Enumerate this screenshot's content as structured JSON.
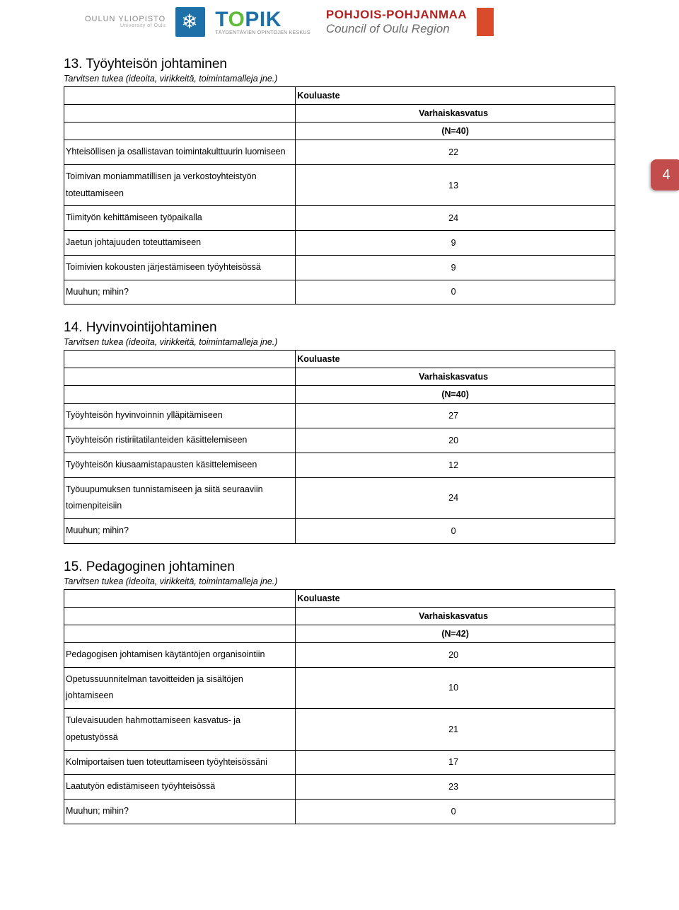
{
  "logos": {
    "oulun_top": "OULUN YLIOPISTO",
    "oulun_bot": "University of Oulu",
    "topik": "TOPIK",
    "topik_sub": "TÄYDENTÄVIEN OPINTOJEN KESKUS",
    "pp_line1": "POHJOIS-POHJANMAA",
    "pp_line2": "Council of Oulu Region"
  },
  "page_number": "4",
  "sections": [
    {
      "title": "13. Työyhteisön johtaminen",
      "subtitle": "Tarvitsen tukea (ideoita, virikkeitä, toimintamalleja jne.)",
      "kouluaste": "Kouluaste",
      "varhais": "Varhaiskasvatus",
      "n": "(N=40)",
      "rows": [
        {
          "label": "Yhteisöllisen ja osallistavan toimintakulttuurin luomiseen",
          "v": "22"
        },
        {
          "label": "Toimivan moniammatillisen ja verkostoyhteistyön toteuttamiseen",
          "v": "13"
        },
        {
          "label": "Tiimityön kehittämiseen työpaikalla",
          "v": "24"
        },
        {
          "label": "Jaetun johtajuuden toteuttamiseen",
          "v": "9"
        },
        {
          "label": "Toimivien kokousten järjestämiseen työyhteisössä",
          "v": "9"
        },
        {
          "label": "Muuhun; mihin?",
          "v": "0"
        }
      ]
    },
    {
      "title": "14. Hyvinvointijohtaminen",
      "subtitle": "Tarvitsen tukea (ideoita, virikkeitä, toimintamalleja jne.)",
      "kouluaste": "Kouluaste",
      "varhais": "Varhaiskasvatus",
      "n": "(N=40)",
      "rows": [
        {
          "label": "Työyhteisön hyvinvoinnin ylläpitämiseen",
          "v": "27"
        },
        {
          "label": "Työyhteisön ristiriitatilanteiden käsittelemiseen",
          "v": "20"
        },
        {
          "label": "Työyhteisön kiusaamistapausten käsittelemiseen",
          "v": "12"
        },
        {
          "label": "Työuupumuksen tunnistamiseen ja siitä seuraaviin toimenpiteisiin",
          "v": "24"
        },
        {
          "label": "Muuhun; mihin?",
          "v": "0"
        }
      ]
    },
    {
      "title": "15. Pedagoginen johtaminen",
      "subtitle": "Tarvitsen tukea (ideoita, virikkeitä, toimintamalleja jne.)",
      "kouluaste": "Kouluaste",
      "varhais": "Varhaiskasvatus",
      "n": "(N=42)",
      "rows": [
        {
          "label": "Pedagogisen johtamisen  käytäntöjen organisointiin",
          "v": "20"
        },
        {
          "label": "Opetussuunnitelman tavoitteiden ja sisältöjen johtamiseen",
          "v": "10"
        },
        {
          "label": "Tulevaisuuden hahmottamiseen kasvatus- ja opetustyössä",
          "v": "21"
        },
        {
          "label": "Kolmiportaisen tuen toteuttamiseen työyhteisössäni",
          "v": "17"
        },
        {
          "label": "Laatutyön edistämiseen työyhteisössä",
          "v": "23"
        },
        {
          "label": "Muuhun; mihin?",
          "v": "0"
        }
      ]
    }
  ]
}
